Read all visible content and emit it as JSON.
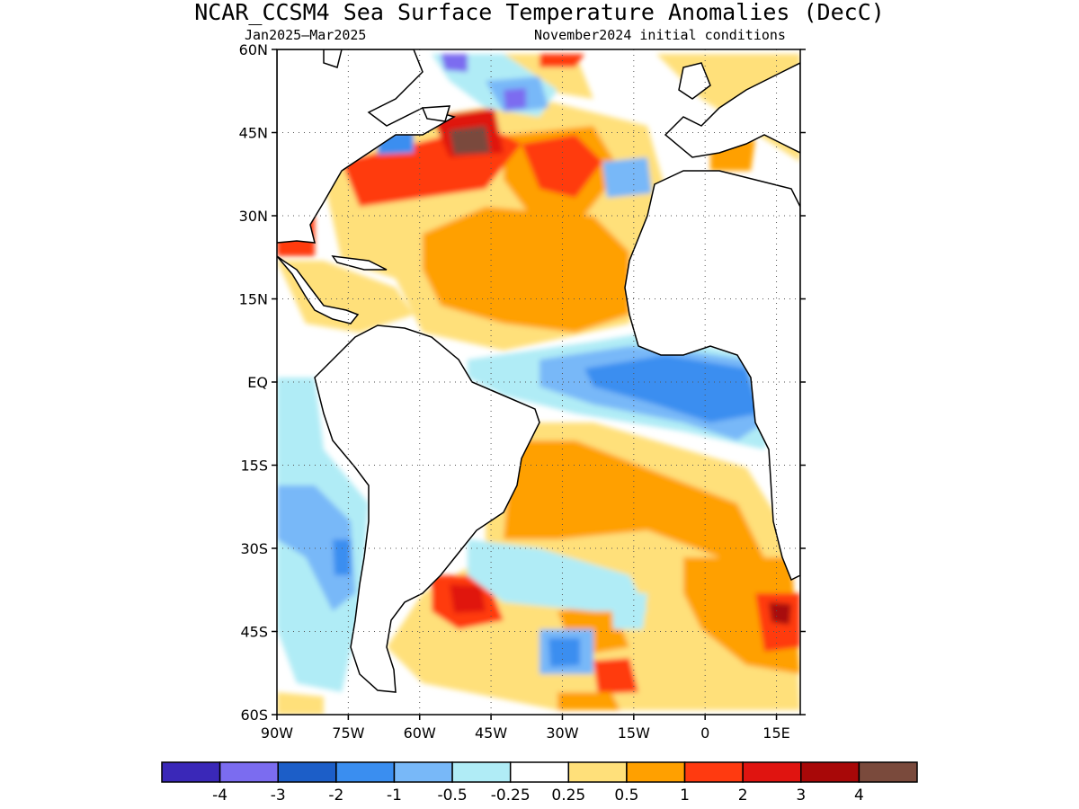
{
  "title": "NCAR_CCSM4 Sea Surface Temperature Anomalies (DecC)",
  "subtitle_left": "Jan2025–Mar2025",
  "subtitle_right": "November2024 initial conditions",
  "map": {
    "projection": "equirectangular",
    "lon_range": [
      -90,
      20
    ],
    "lat_range": [
      -60,
      60
    ],
    "grid": "dotted",
    "region": "Atlantic Ocean",
    "lat_ticks": [
      {
        "lat": 60,
        "label": "60N"
      },
      {
        "lat": 45,
        "label": "45N"
      },
      {
        "lat": 30,
        "label": "30N"
      },
      {
        "lat": 15,
        "label": "15N"
      },
      {
        "lat": 0,
        "label": "EQ"
      },
      {
        "lat": -15,
        "label": "15S"
      },
      {
        "lat": -30,
        "label": "30S"
      },
      {
        "lat": -45,
        "label": "45S"
      },
      {
        "lat": -60,
        "label": "60S"
      }
    ],
    "lon_ticks": [
      {
        "lon": -90,
        "label": "90W"
      },
      {
        "lon": -75,
        "label": "75W"
      },
      {
        "lon": -60,
        "label": "60W"
      },
      {
        "lon": -45,
        "label": "45W"
      },
      {
        "lon": -30,
        "label": "30W"
      },
      {
        "lon": -15,
        "label": "15W"
      },
      {
        "lon": 0,
        "label": "0"
      },
      {
        "lon": 15,
        "label": "15E"
      }
    ]
  },
  "colorbar": {
    "colors": [
      "#3a28b8",
      "#7b6cf0",
      "#1c5ec8",
      "#3a8ef0",
      "#78b8f8",
      "#b0ecf6",
      "#ffffff",
      "#ffe07a",
      "#ffa000",
      "#ff3a10",
      "#e01410",
      "#a80808",
      "#7a4a3c"
    ],
    "labels": [
      "-4",
      "-3",
      "-2",
      "-1",
      "-0.5",
      "-0.25",
      "0.25",
      "0.5",
      "1",
      "2",
      "3",
      "4"
    ]
  }
}
